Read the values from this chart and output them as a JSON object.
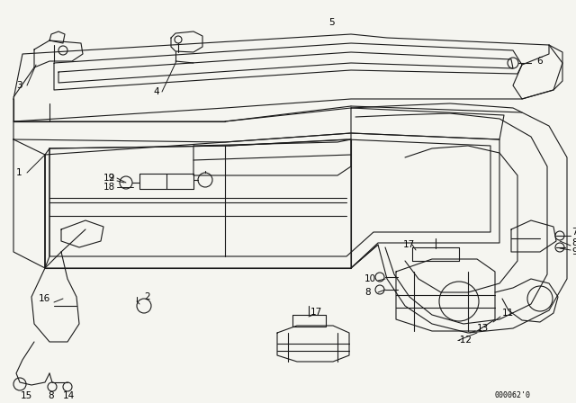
{
  "background_color": "#f5f5f0",
  "line_color": "#1a1a1a",
  "watermark": "000062'0",
  "fig_width": 6.4,
  "fig_height": 4.48,
  "dpi": 100
}
